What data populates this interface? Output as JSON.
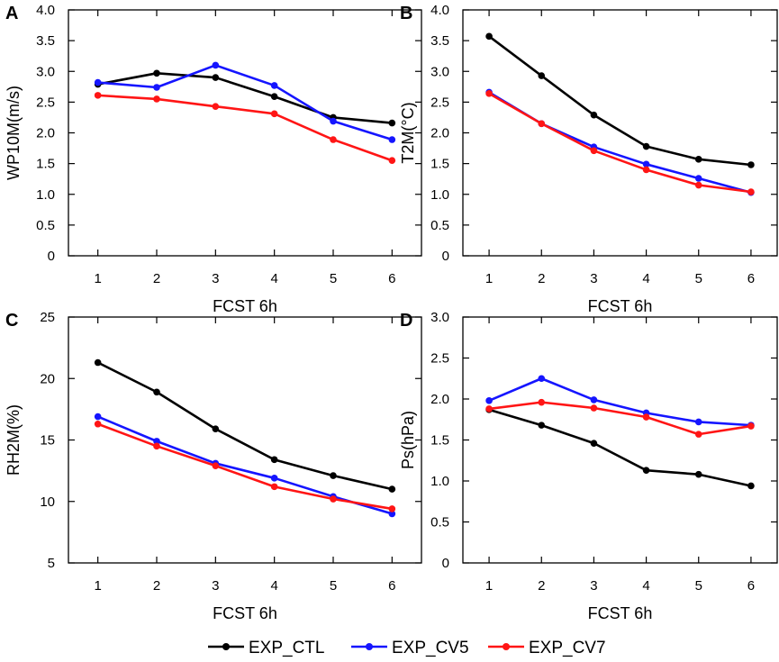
{
  "chart_data": [
    {
      "type": "line",
      "panel_label": "A",
      "xlabel": "FCST 6h",
      "ylabel": "WP10M(m/s)",
      "x": [
        1,
        2,
        3,
        4,
        5,
        6
      ],
      "xticks": [
        "1",
        "2",
        "3",
        "4",
        "5",
        "6"
      ],
      "ylim": [
        0,
        4
      ],
      "yticks": [
        "0",
        "0.5",
        "1.0",
        "1.5",
        "2.0",
        "2.5",
        "3.0",
        "3.5",
        "4.0"
      ],
      "series": [
        {
          "name": "EXP_CTL",
          "values": [
            2.79,
            2.97,
            2.9,
            2.59,
            2.25,
            2.16
          ]
        },
        {
          "name": "EXP_CV5",
          "values": [
            2.82,
            2.74,
            3.1,
            2.77,
            2.19,
            1.89
          ]
        },
        {
          "name": "EXP_CV7",
          "values": [
            2.61,
            2.55,
            2.43,
            2.31,
            1.89,
            1.55
          ]
        }
      ]
    },
    {
      "type": "line",
      "panel_label": "B",
      "xlabel": "FCST 6h",
      "ylabel": "T2M(°C)",
      "x": [
        1,
        2,
        3,
        4,
        5,
        6
      ],
      "xticks": [
        "1",
        "2",
        "3",
        "4",
        "5",
        "6"
      ],
      "ylim": [
        0,
        4
      ],
      "yticks": [
        "0",
        "0.5",
        "1.0",
        "1.5",
        "2.0",
        "2.5",
        "3.0",
        "3.5",
        "4.0"
      ],
      "series": [
        {
          "name": "EXP_CTL",
          "values": [
            3.57,
            2.93,
            2.29,
            1.78,
            1.57,
            1.48
          ]
        },
        {
          "name": "EXP_CV5",
          "values": [
            2.66,
            2.15,
            1.77,
            1.49,
            1.26,
            1.03
          ]
        },
        {
          "name": "EXP_CV7",
          "values": [
            2.64,
            2.15,
            1.71,
            1.4,
            1.15,
            1.04
          ]
        }
      ]
    },
    {
      "type": "line",
      "panel_label": "C",
      "xlabel": "FCST 6h",
      "ylabel": "RH2M(%)",
      "x": [
        1,
        2,
        3,
        4,
        5,
        6
      ],
      "xticks": [
        "1",
        "2",
        "3",
        "4",
        "5",
        "6"
      ],
      "ylim": [
        5,
        25
      ],
      "yticks": [
        "5",
        "10",
        "15",
        "20",
        "25"
      ],
      "series": [
        {
          "name": "EXP_CTL",
          "values": [
            21.3,
            18.9,
            15.9,
            13.4,
            12.1,
            11.0
          ]
        },
        {
          "name": "EXP_CV5",
          "values": [
            16.9,
            14.9,
            13.1,
            11.9,
            10.4,
            9.0
          ]
        },
        {
          "name": "EXP_CV7",
          "values": [
            16.3,
            14.5,
            12.9,
            11.2,
            10.2,
            9.4
          ]
        }
      ]
    },
    {
      "type": "line",
      "panel_label": "D",
      "xlabel": "FCST 6h",
      "ylabel": "Ps(hPa)",
      "x": [
        1,
        2,
        3,
        4,
        5,
        6
      ],
      "xticks": [
        "1",
        "2",
        "3",
        "4",
        "5",
        "6"
      ],
      "ylim": [
        0,
        3
      ],
      "yticks": [
        "0",
        "0.5",
        "1.0",
        "1.5",
        "2.0",
        "2.5",
        "3.0"
      ],
      "series": [
        {
          "name": "EXP_CTL",
          "values": [
            1.87,
            1.68,
            1.46,
            1.13,
            1.08,
            0.94
          ]
        },
        {
          "name": "EXP_CV5",
          "values": [
            1.98,
            2.25,
            1.99,
            1.83,
            1.72,
            1.68
          ]
        },
        {
          "name": "EXP_CV7",
          "values": [
            1.88,
            1.96,
            1.89,
            1.78,
            1.57,
            1.67
          ]
        }
      ]
    }
  ],
  "legend": {
    "placement": "bottom-center",
    "items": [
      {
        "name": "EXP_CTL",
        "color": "#000000"
      },
      {
        "name": "EXP_CV5",
        "color": "#1515ff"
      },
      {
        "name": "EXP_CV7",
        "color": "#ff1515"
      }
    ]
  }
}
